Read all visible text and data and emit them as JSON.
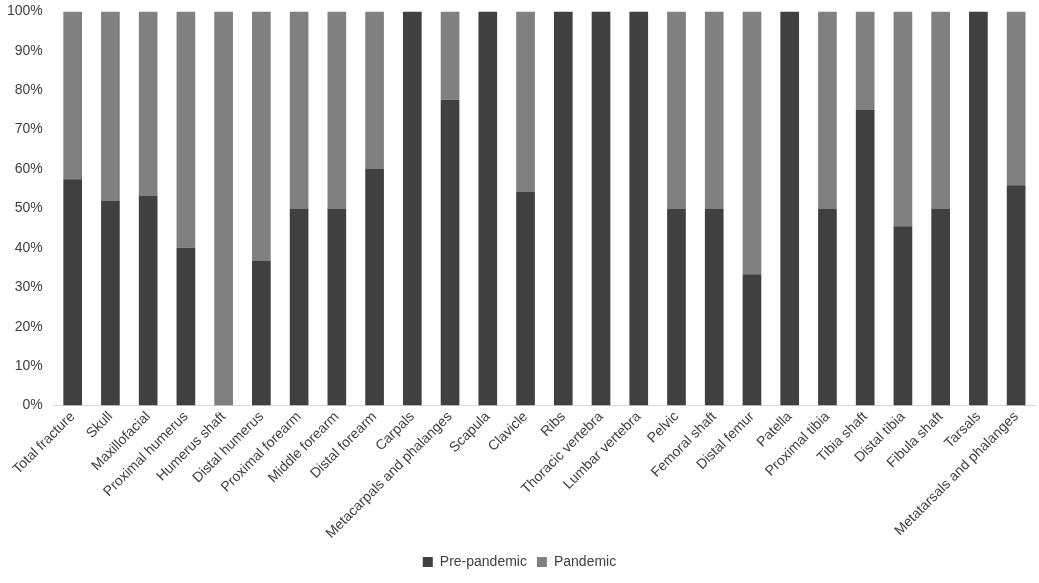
{
  "chart_data": {
    "type": "bar",
    "stacked": true,
    "categories": [
      "Total fracture",
      "Skull",
      "Maxillofacial",
      "Proximal humerus",
      "Humerus shaft",
      "Distal humerus",
      "Proximal forearm",
      "Middle forearm",
      "Distal forearm",
      "Carpals",
      "Metacarpals and phalanges",
      "Scapula",
      "Clavicle",
      "Ribs",
      "Thoracic vertebra",
      "Lumbar vertebra",
      "Pelvic",
      "Femoral shaft",
      "Distal femur",
      "Patella",
      "Proximal tibia",
      "Tibia shaft",
      "Distal tibia",
      "Fibula shaft",
      "Tarsals",
      "Metatarsals and phalanges"
    ],
    "series": [
      {
        "name": "Pre-pandemic",
        "color": "#404040",
        "values": [
          57.4,
          52,
          53.3,
          40,
          0,
          36.8,
          50,
          50,
          60,
          100,
          77.6,
          100,
          54.2,
          100,
          100,
          100,
          50,
          50,
          33.3,
          100,
          50,
          75,
          45.5,
          50,
          100,
          55.9
        ]
      },
      {
        "name": "Pandemic",
        "color": "#808080",
        "values": [
          42.6,
          48,
          46.7,
          60,
          100,
          63.2,
          50,
          50,
          40,
          0,
          22.4,
          0,
          45.8,
          0,
          0,
          0,
          50,
          50,
          66.7,
          0,
          50,
          25,
          54.5,
          50,
          0,
          44.1
        ]
      }
    ],
    "ylim": [
      0,
      100
    ],
    "yticks": [
      {
        "value": 0,
        "label": "0%"
      },
      {
        "value": 10,
        "label": "10%"
      },
      {
        "value": 20,
        "label": "20%"
      },
      {
        "value": 30,
        "label": "30%"
      },
      {
        "value": 40,
        "label": "40%"
      },
      {
        "value": 50,
        "label": "50%"
      },
      {
        "value": 60,
        "label": "60%"
      },
      {
        "value": 70,
        "label": "70%"
      },
      {
        "value": 80,
        "label": "80%"
      },
      {
        "value": 90,
        "label": "90%"
      },
      {
        "value": 100,
        "label": "100%"
      }
    ],
    "grid": false,
    "legend": "bottom"
  }
}
